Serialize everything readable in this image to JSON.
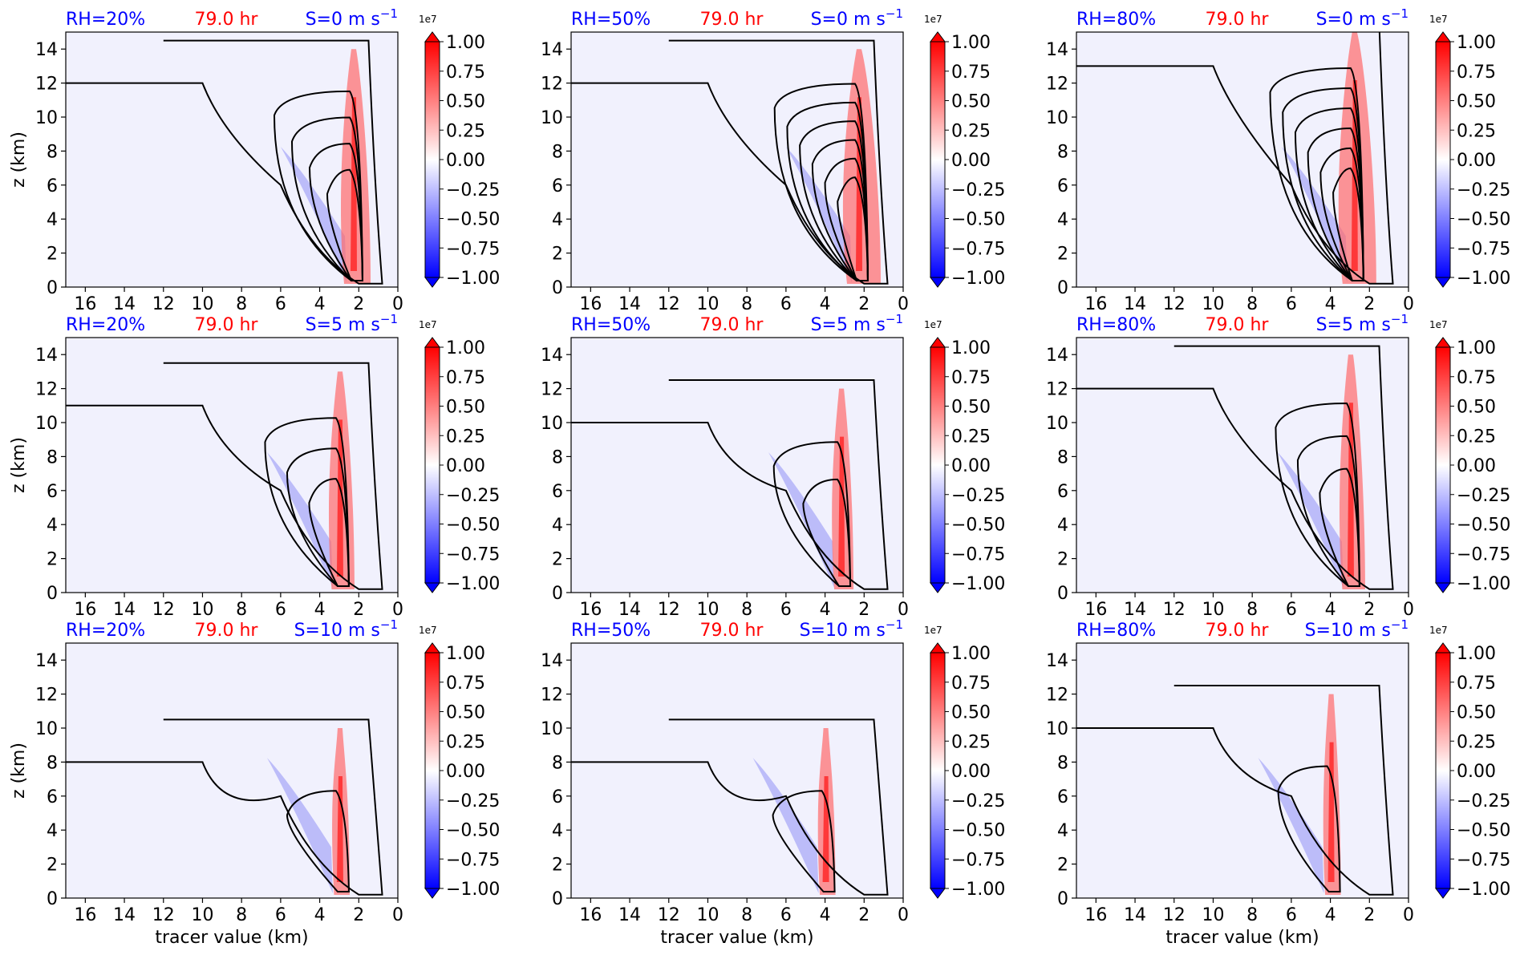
{
  "chart_data": {
    "type": "heatmap",
    "layout": "3x3 grid of contour panels, each with its own colorbar",
    "x_axis": {
      "label": "tracer value (km)",
      "lim": [
        17,
        0
      ],
      "ticks": [
        "16",
        "14",
        "12",
        "10",
        "8",
        "6",
        "4",
        "2",
        "0"
      ],
      "tick_values": [
        16,
        14,
        12,
        10,
        8,
        6,
        4,
        2,
        0
      ]
    },
    "y_axis": {
      "label": "z (km)",
      "lim": [
        0,
        15
      ],
      "ticks": [
        "0",
        "2",
        "4",
        "6",
        "8",
        "10",
        "12",
        "14"
      ],
      "tick_values": [
        0,
        2,
        4,
        6,
        8,
        10,
        12,
        14
      ]
    },
    "colorbar": {
      "multiplier": "1e7",
      "ticks": [
        "1.00",
        "0.75",
        "0.50",
        "0.25",
        "0.00",
        "−0.25",
        "−0.50",
        "−0.75",
        "−1.00"
      ],
      "tick_values": [
        1.0,
        0.75,
        0.5,
        0.25,
        0.0,
        -0.25,
        -0.5,
        -0.75,
        -1.0
      ],
      "colormap": "bwr",
      "color_low": "#0000ff",
      "color_mid": "#ffffff",
      "color_high": "#ff0000",
      "extend": "both"
    },
    "colors": {
      "rh_label": "#0000ff",
      "time_label": "#ff0000",
      "shear_label": "#0000ff",
      "contour": "#000000"
    },
    "panels": [
      {
        "row": 0,
        "col": 0,
        "rh": "RH=20%",
        "time": "79.0 hr",
        "shear": "S=0 m s",
        "shear_exp": "−1",
        "show_ylabel": true,
        "show_xlabel": false,
        "updraft_x": 2.3,
        "updraft_top": 14,
        "contour_rings": 4
      },
      {
        "row": 0,
        "col": 1,
        "rh": "RH=50%",
        "time": "79.0 hr",
        "shear": "S=0 m s",
        "shear_exp": "−1",
        "show_ylabel": false,
        "show_xlabel": false,
        "updraft_x": 2.3,
        "updraft_top": 14,
        "contour_rings": 6
      },
      {
        "row": 0,
        "col": 2,
        "rh": "RH=80%",
        "time": "79.0 hr",
        "shear": "S=0 m s",
        "shear_exp": "−1",
        "show_ylabel": false,
        "show_xlabel": false,
        "updraft_x": 2.8,
        "updraft_top": 15,
        "contour_rings": 6
      },
      {
        "row": 1,
        "col": 0,
        "rh": "RH=20%",
        "time": "79.0 hr",
        "shear": "S=5 m s",
        "shear_exp": "−1",
        "show_ylabel": true,
        "show_xlabel": false,
        "updraft_x": 3.0,
        "updraft_top": 13,
        "contour_rings": 3
      },
      {
        "row": 1,
        "col": 1,
        "rh": "RH=50%",
        "time": "79.0 hr",
        "shear": "S=5 m s",
        "shear_exp": "−1",
        "show_ylabel": false,
        "show_xlabel": false,
        "updraft_x": 3.2,
        "updraft_top": 12,
        "contour_rings": 2
      },
      {
        "row": 1,
        "col": 2,
        "rh": "RH=80%",
        "time": "79.0 hr",
        "shear": "S=5 m s",
        "shear_exp": "−1",
        "show_ylabel": false,
        "show_xlabel": false,
        "updraft_x": 3.0,
        "updraft_top": 14,
        "contour_rings": 3
      },
      {
        "row": 2,
        "col": 0,
        "rh": "RH=20%",
        "time": "79.0 hr",
        "shear": "S=10 m s",
        "shear_exp": "−1",
        "show_ylabel": true,
        "show_xlabel": true,
        "updraft_x": 3.0,
        "updraft_top": 10,
        "contour_rings": 1
      },
      {
        "row": 2,
        "col": 1,
        "rh": "RH=50%",
        "time": "79.0 hr",
        "shear": "S=10 m s",
        "shear_exp": "−1",
        "show_ylabel": false,
        "show_xlabel": true,
        "updraft_x": 4.0,
        "updraft_top": 10,
        "contour_rings": 1
      },
      {
        "row": 2,
        "col": 2,
        "rh": "RH=80%",
        "time": "79.0 hr",
        "shear": "S=10 m s",
        "shear_exp": "−1",
        "show_ylabel": false,
        "show_xlabel": true,
        "updraft_x": 4.0,
        "updraft_top": 12,
        "contour_rings": 1
      }
    ]
  }
}
